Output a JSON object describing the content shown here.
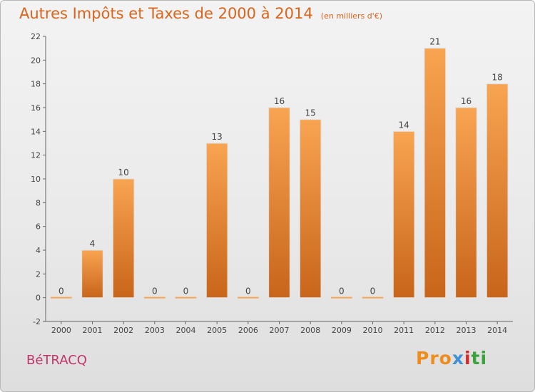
{
  "title": "Autres Impôts et Taxes de 2000 à 2014",
  "title_unit": "(en milliers d'€)",
  "commune": "BéTRACQ",
  "logo": {
    "part1": "Pro",
    "part2": "x",
    "part3": "i",
    "part4": "ti"
  },
  "colors": {
    "bar_top": "#f8a451",
    "bar_bottom": "#c8651a",
    "title": "#d9641c",
    "commune": "#c0346a"
  },
  "chart_data": {
    "type": "bar",
    "title": "Autres Impôts et Taxes de 2000 à 2014",
    "subtitle": "(en milliers d'€)",
    "xlabel": "",
    "ylabel": "",
    "categories": [
      "2000",
      "2001",
      "2002",
      "2003",
      "2004",
      "2005",
      "2006",
      "2007",
      "2008",
      "2009",
      "2010",
      "2011",
      "2012",
      "2013",
      "2014"
    ],
    "values": [
      0,
      4,
      10,
      0,
      0,
      13,
      0,
      16,
      15,
      0,
      0,
      14,
      21,
      16,
      18
    ],
    "ylim": [
      -2,
      22
    ],
    "yticks": [
      -2,
      0,
      2,
      4,
      6,
      8,
      10,
      12,
      14,
      16,
      18,
      20,
      22
    ],
    "grid": false,
    "legend": "none"
  }
}
